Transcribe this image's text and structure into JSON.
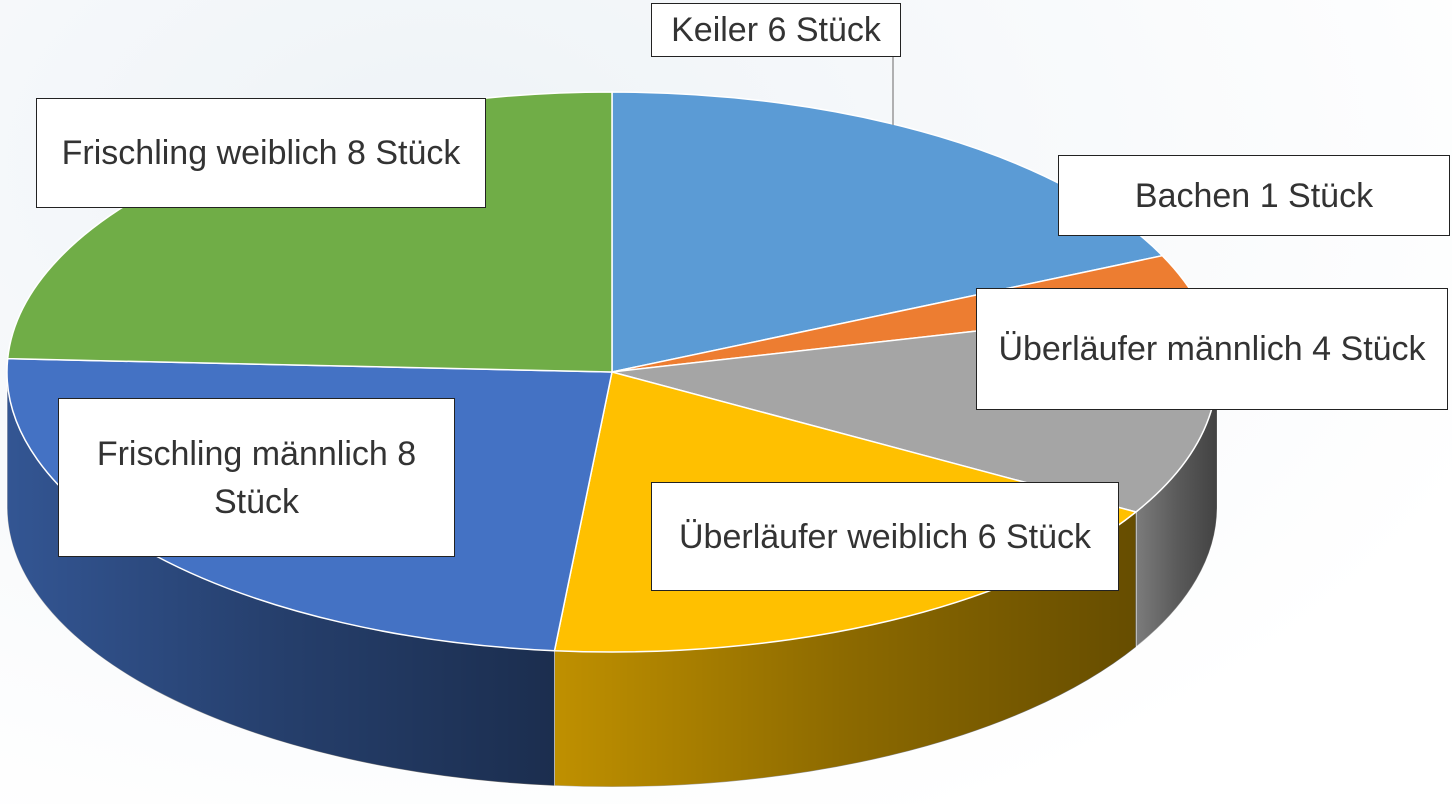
{
  "chart_data": {
    "type": "pie",
    "three_d": true,
    "categories": [
      "Keiler",
      "Bachen",
      "Überläufer männlich",
      "Überläufer weiblich",
      "Frischling männlich",
      "Frischling weiblich"
    ],
    "values": [
      6,
      1,
      4,
      6,
      8,
      8
    ],
    "value_labels": [
      "6 Stück",
      "1 Stück",
      "4 Stück",
      "6 Stück",
      "8 Stück",
      "8 Stück"
    ],
    "colors": [
      "#5b9bd5",
      "#ed7d31",
      "#a5a5a5",
      "#ffc000",
      "#4472c4",
      "#70ad47"
    ]
  }
}
